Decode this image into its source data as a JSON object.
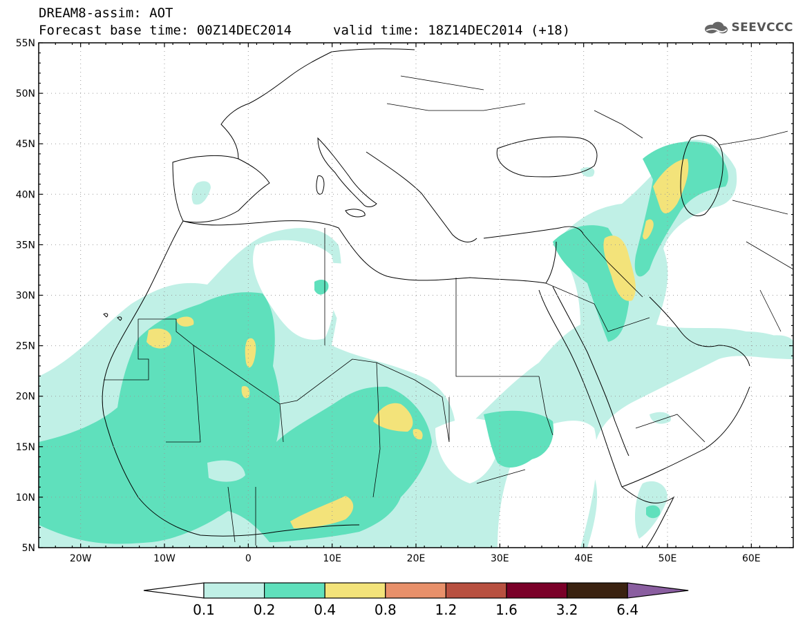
{
  "header": {
    "line1": "DREAM8-assim: AOT",
    "line2": "Forecast base time: 00Z14DEC2014",
    "valid": "valid time: 18Z14DEC2014 (+18)",
    "logo_text": "SEEVCCC"
  },
  "map": {
    "lon_range": [
      -25,
      65
    ],
    "lat_range": [
      5,
      55
    ],
    "lat_ticks": [
      "55N",
      "50N",
      "45N",
      "40N",
      "35N",
      "30N",
      "25N",
      "20N",
      "15N",
      "10N",
      "5N"
    ],
    "lon_ticks": [
      "20W",
      "10W",
      "0",
      "10E",
      "20E",
      "30E",
      "40E",
      "50E",
      "60E"
    ]
  },
  "colorbar": {
    "labels": [
      "0.1",
      "0.2",
      "0.4",
      "0.8",
      "1.2",
      "1.6",
      "3.2",
      "6.4"
    ],
    "colors": [
      "#ffffff",
      "#c0f0e6",
      "#5fe0bc",
      "#f3e37a",
      "#e8906a",
      "#b85040",
      "#7a0028",
      "#3a2210",
      "#8a5ea0"
    ]
  },
  "colors": {
    "level1": "#c0f0e6",
    "level2": "#5fe0bc",
    "level3": "#f3e37a"
  }
}
